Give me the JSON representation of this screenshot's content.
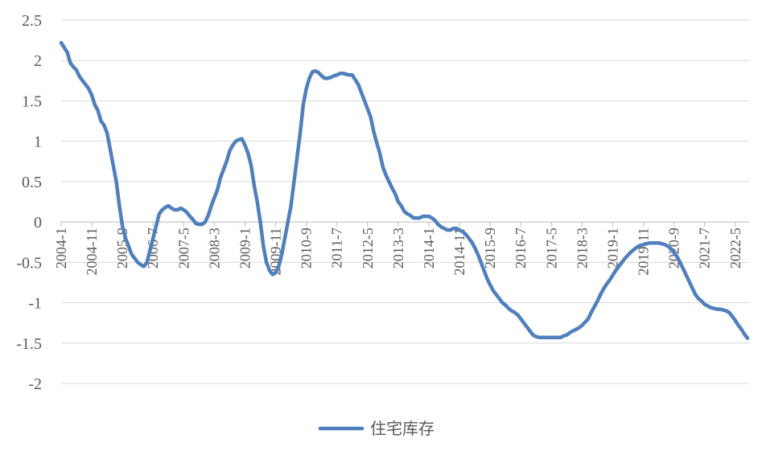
{
  "chart_data": {
    "type": "line",
    "categories": [
      "2004-1",
      null,
      null,
      null,
      null,
      null,
      null,
      null,
      null,
      null,
      "2004-11",
      null,
      null,
      null,
      null,
      null,
      null,
      null,
      null,
      null,
      "2005-9",
      null,
      null,
      null,
      null,
      null,
      null,
      null,
      null,
      null,
      "2006-7",
      null,
      null,
      null,
      null,
      null,
      null,
      null,
      null,
      null,
      "2007-5",
      null,
      null,
      null,
      null,
      null,
      null,
      null,
      null,
      null,
      "2008-3",
      null,
      null,
      null,
      null,
      null,
      null,
      null,
      null,
      null,
      "2009-1",
      null,
      null,
      null,
      null,
      null,
      null,
      null,
      null,
      null,
      "2009-11",
      null,
      null,
      null,
      null,
      null,
      null,
      null,
      null,
      null,
      "2010-9",
      null,
      null,
      null,
      null,
      null,
      null,
      null,
      null,
      null,
      "2011-7",
      null,
      null,
      null,
      null,
      null,
      null,
      null,
      null,
      null,
      "2012-5",
      null,
      null,
      null,
      null,
      null,
      null,
      null,
      null,
      null,
      "2013-3",
      null,
      null,
      null,
      null,
      null,
      null,
      null,
      null,
      null,
      "2014-1",
      null,
      null,
      null,
      null,
      null,
      null,
      null,
      null,
      null,
      "2014-11",
      null,
      null,
      null,
      null,
      null,
      null,
      null,
      null,
      null,
      "2015-9",
      null,
      null,
      null,
      null,
      null,
      null,
      null,
      null,
      null,
      "2016-7",
      null,
      null,
      null,
      null,
      null,
      null,
      null,
      null,
      null,
      "2017-5",
      null,
      null,
      null,
      null,
      null,
      null,
      null,
      null,
      null,
      "2018-3",
      null,
      null,
      null,
      null,
      null,
      null,
      null,
      null,
      null,
      "2019-1",
      null,
      null,
      null,
      null,
      null,
      null,
      null,
      null,
      null,
      "2019-11",
      null,
      null,
      null,
      null,
      null,
      null,
      null,
      null,
      null,
      "2020-9",
      null,
      null,
      null,
      null,
      null,
      null,
      null,
      null,
      null,
      "2021-7",
      null,
      null,
      null,
      null,
      null,
      null,
      null,
      null,
      null,
      "2022-5",
      null,
      null,
      null,
      null
    ],
    "series": [
      {
        "name": "住宅库存",
        "color": "#4f7fbd",
        "values": [
          2.22,
          2.16,
          2.1,
          1.97,
          1.92,
          1.88,
          1.8,
          1.75,
          1.7,
          1.65,
          1.57,
          1.45,
          1.38,
          1.25,
          1.2,
          1.1,
          0.9,
          0.7,
          0.5,
          0.2,
          -0.05,
          -0.2,
          -0.3,
          -0.4,
          -0.45,
          -0.5,
          -0.53,
          -0.55,
          -0.5,
          -0.35,
          -0.2,
          -0.05,
          0.1,
          0.15,
          0.18,
          0.2,
          0.17,
          0.15,
          0.15,
          0.17,
          0.15,
          0.12,
          0.07,
          0.03,
          -0.02,
          -0.03,
          -0.03,
          0,
          0.08,
          0.2,
          0.3,
          0.4,
          0.55,
          0.65,
          0.75,
          0.88,
          0.95,
          1,
          1.02,
          1.03,
          0.95,
          0.85,
          0.7,
          0.45,
          0.25,
          0,
          -0.3,
          -0.5,
          -0.6,
          -0.65,
          -0.63,
          -0.55,
          -0.4,
          -0.2,
          0,
          0.2,
          0.5,
          0.8,
          1.1,
          1.45,
          1.65,
          1.78,
          1.86,
          1.87,
          1.85,
          1.81,
          1.78,
          1.78,
          1.79,
          1.81,
          1.82,
          1.84,
          1.84,
          1.83,
          1.82,
          1.82,
          1.76,
          1.7,
          1.6,
          1.5,
          1.4,
          1.3,
          1.12,
          0.98,
          0.85,
          0.68,
          0.58,
          0.5,
          0.42,
          0.35,
          0.25,
          0.2,
          0.13,
          0.1,
          0.08,
          0.05,
          0.05,
          0.05,
          0.07,
          0.07,
          0.07,
          0.05,
          0.02,
          -0.03,
          -0.06,
          -0.08,
          -0.1,
          -0.1,
          -0.08,
          -0.08,
          -0.1,
          -0.12,
          -0.15,
          -0.2,
          -0.25,
          -0.32,
          -0.4,
          -0.5,
          -0.6,
          -0.7,
          -0.78,
          -0.85,
          -0.9,
          -0.95,
          -1,
          -1.03,
          -1.07,
          -1.1,
          -1.12,
          -1.15,
          -1.2,
          -1.25,
          -1.3,
          -1.35,
          -1.4,
          -1.42,
          -1.43,
          -1.43,
          -1.43,
          -1.43,
          -1.43,
          -1.43,
          -1.43,
          -1.43,
          -1.41,
          -1.4,
          -1.37,
          -1.35,
          -1.33,
          -1.31,
          -1.28,
          -1.24,
          -1.2,
          -1.12,
          -1.05,
          -0.98,
          -0.9,
          -0.83,
          -0.77,
          -0.72,
          -0.66,
          -0.6,
          -0.55,
          -0.5,
          -0.45,
          -0.41,
          -0.37,
          -0.34,
          -0.31,
          -0.29,
          -0.28,
          -0.27,
          -0.26,
          -0.26,
          -0.26,
          -0.26,
          -0.27,
          -0.28,
          -0.3,
          -0.33,
          -0.38,
          -0.43,
          -0.5,
          -0.58,
          -0.66,
          -0.74,
          -0.82,
          -0.9,
          -0.95,
          -0.98,
          -1.02,
          -1.04,
          -1.06,
          -1.07,
          -1.08,
          -1.08,
          -1.09,
          -1.1,
          -1.12,
          -1.17,
          -1.22,
          -1.28,
          -1.33,
          -1.39,
          -1.44
        ]
      }
    ],
    "ylim": [
      -2,
      2.5
    ],
    "yticks": [
      2.5,
      2,
      1.5,
      1,
      0.5,
      0,
      -0.5,
      -1,
      -1.5,
      -2
    ],
    "grid": true,
    "legend": "bottom"
  }
}
